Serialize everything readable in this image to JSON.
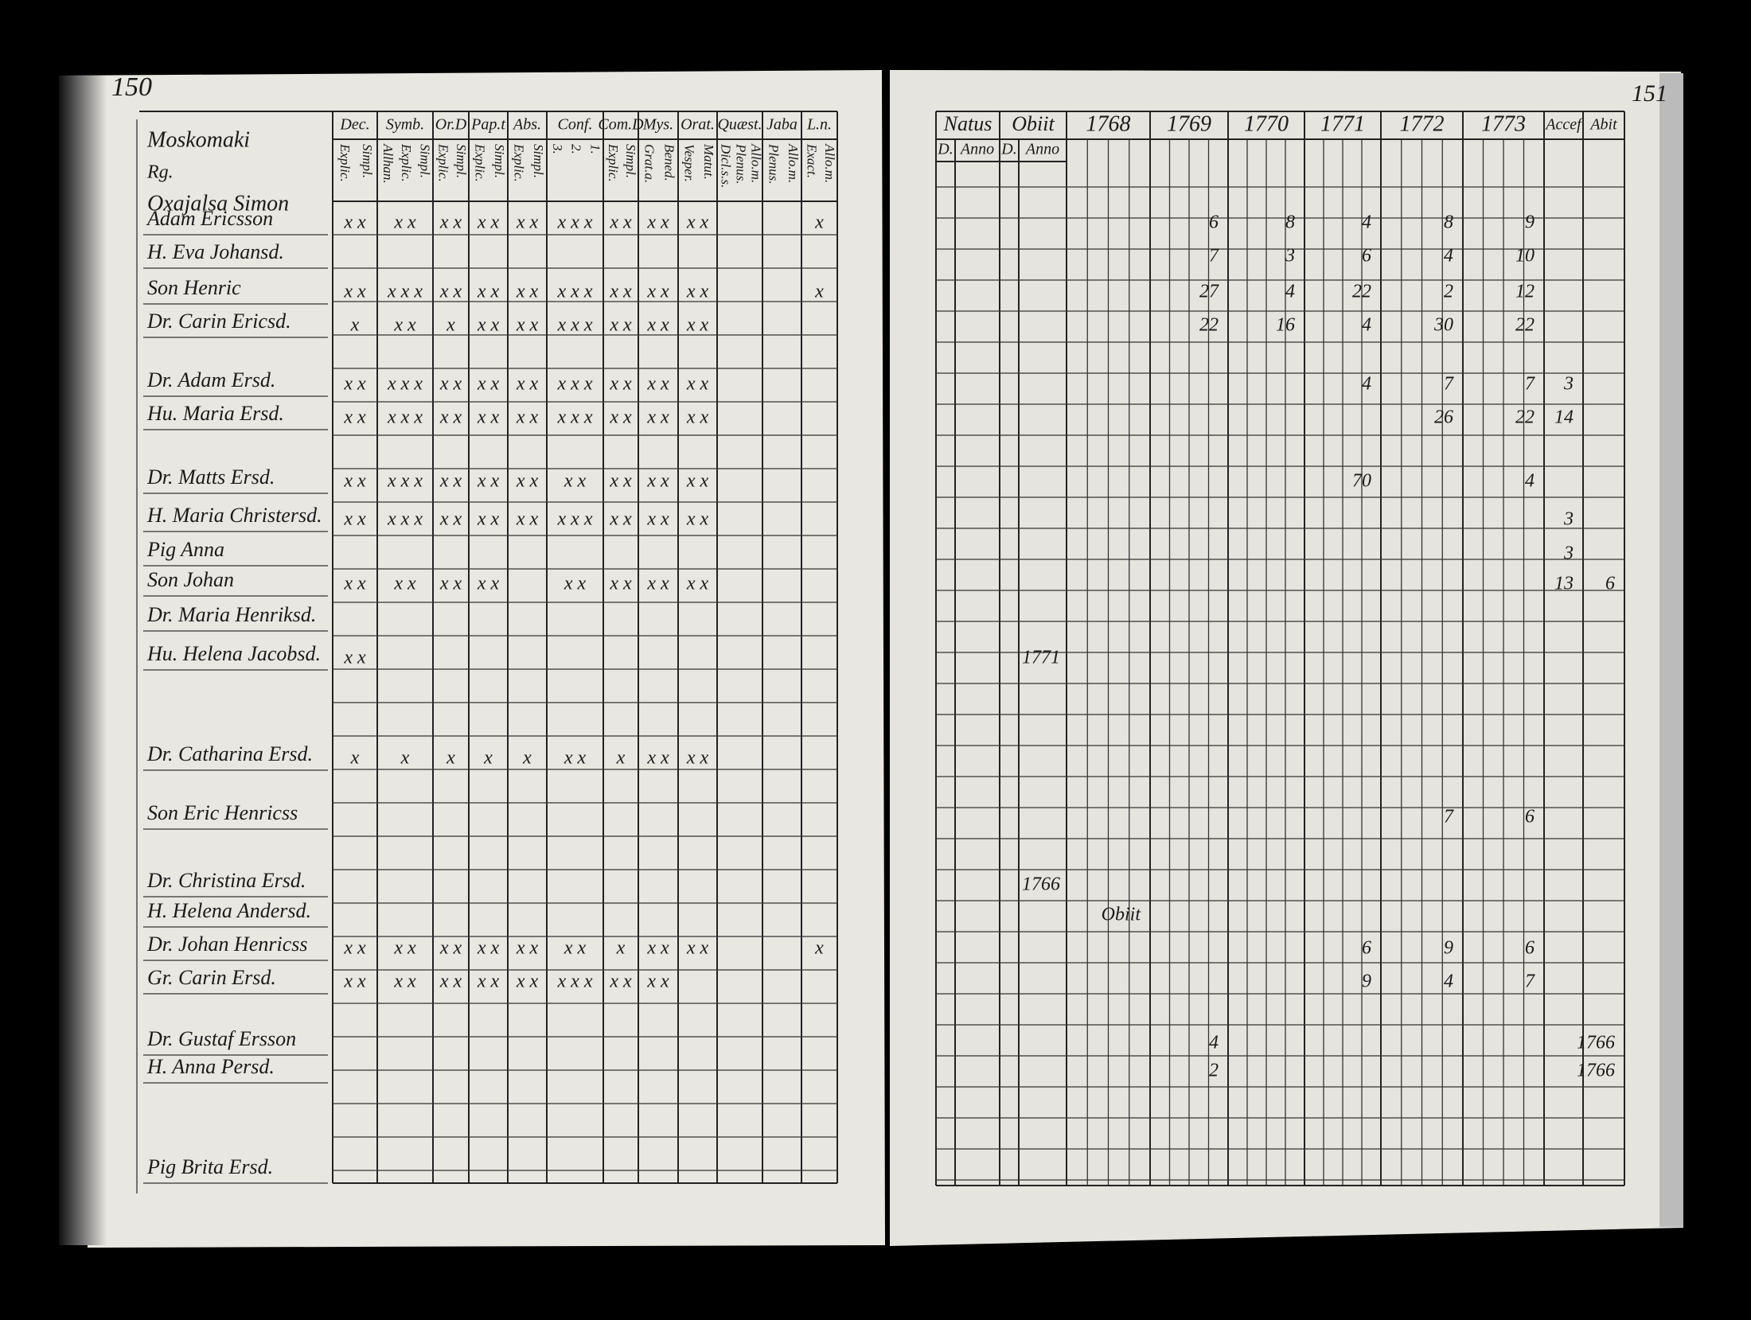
{
  "left_page": {
    "page_number": "150",
    "name_header": [
      "Moskomaki",
      "Rg.",
      "Oxajalsa Simon"
    ],
    "columns": [
      {
        "label": "Dec.",
        "subs": [
          "Explic.",
          "Simpl."
        ]
      },
      {
        "label": "Symb.",
        "subs": [
          "Allhan.",
          "Explic.",
          "Simpl."
        ]
      },
      {
        "label": "Or.D",
        "subs": [
          "Explic.",
          "Simpl."
        ]
      },
      {
        "label": "Pap.t",
        "subs": [
          "Explic.",
          "Simpl."
        ]
      },
      {
        "label": "Abs.",
        "subs": [
          "Explic.",
          "Simpl."
        ]
      },
      {
        "label": "Conf.",
        "subs": [
          "3.",
          "2.",
          "1."
        ]
      },
      {
        "label": "Com.D",
        "subs": [
          "Explic.",
          "Simpl."
        ]
      },
      {
        "label": "Mys.",
        "subs": [
          "Grat.a.",
          "Bened."
        ]
      },
      {
        "label": "Orat.",
        "subs": [
          "Vesper.",
          "Matut."
        ]
      },
      {
        "label": "Quæst.",
        "subs": [
          "Dicl.s.s.",
          "Plenus.",
          "Allo.m."
        ]
      },
      {
        "label": "Jaba",
        "subs": [
          "Plenus.",
          "Allo.m."
        ]
      },
      {
        "label": "L.n.",
        "subs": [
          "Exact.",
          "Allo.m."
        ]
      }
    ],
    "rows": [
      {
        "name": "Adam Ericsson",
        "marks": [
          "x x",
          "x x",
          "x x",
          "x x",
          "x x",
          "x x x",
          "x x",
          "x x",
          "x x",
          null,
          null,
          "x"
        ]
      },
      {
        "name": "H. Eva Johansd."
      },
      {
        "name": "Son Henric",
        "marks": [
          "x x",
          "x x x",
          "x x",
          "x x",
          "x x",
          "x x x",
          "x x",
          "x x",
          "x x",
          null,
          null,
          "x"
        ]
      },
      {
        "name": "Dr. Carin Ericsd.",
        "marks": [
          "x",
          "x x",
          "x",
          "x x",
          "x x",
          "x x x",
          "x x",
          "x x",
          "x x"
        ]
      },
      {
        "name": "Dr. Adam Ersd.",
        "marks": [
          "x x",
          "x x x",
          "x x",
          "x x",
          "x x",
          "x x x",
          "x x",
          "x x",
          "x x"
        ]
      },
      {
        "name": "Hu. Maria Ersd.",
        "marks": [
          "x x",
          "x x x",
          "x x",
          "x x",
          "x x",
          "x x x",
          "x x",
          "x x",
          "x x"
        ]
      },
      {
        "name": "Dr. Matts Ersd.",
        "marks": [
          "x x",
          "x x x",
          "x x",
          "x x",
          "x x",
          "x x",
          "x x",
          "x x",
          "x x"
        ]
      },
      {
        "name": "H. Maria Christersd.",
        "marks": [
          "x x",
          "x x x",
          "x x",
          "x x",
          "x x",
          "x x x",
          "x x",
          "x x",
          "x x"
        ]
      },
      {
        "name": "Pig Anna"
      },
      {
        "name": "Son Johan",
        "marks": [
          "x x",
          "x x",
          "x x",
          "x x",
          null,
          "x x",
          "x x",
          "x x",
          "x x"
        ]
      },
      {
        "name": "Dr. Maria Henriksd."
      },
      {
        "name": "Hu. Helena Jacobsd.",
        "marks": [
          "x x"
        ]
      },
      {
        "name": "Dr. Catharina Ersd.",
        "marks": [
          "x",
          "x",
          "x",
          "x",
          "x",
          "x x",
          "x",
          "x x",
          "x x"
        ]
      },
      {
        "name": "Son Eric Henricss"
      },
      {
        "name": "Dr. Christina Ersd."
      },
      {
        "name": "H. Helena Andersd."
      },
      {
        "name": "Dr. Johan Henricss",
        "marks": [
          "x x",
          "x x",
          "x x",
          "x x",
          "x x",
          "x x",
          "x",
          "x x",
          "x x",
          null,
          null,
          "x"
        ]
      },
      {
        "name": "Gr. Carin Ersd.",
        "marks": [
          "x x",
          "x x",
          "x x",
          "x x",
          "x x",
          "x x x",
          "x x",
          "x x"
        ]
      },
      {
        "name": "Dr. Gustaf Ersson"
      },
      {
        "name": "H. Anna Persd."
      },
      {
        "name": "Pig Brita Ersd."
      }
    ]
  },
  "right_page": {
    "page_number": "151",
    "columns": [
      {
        "label": "Natus",
        "subs": [
          "D.",
          "Anno"
        ]
      },
      {
        "label": "Obiit",
        "subs": [
          "D.",
          "Anno"
        ]
      },
      {
        "label": "1768"
      },
      {
        "label": "1769"
      },
      {
        "label": "1770"
      },
      {
        "label": "1771"
      },
      {
        "label": "1772"
      },
      {
        "label": "1773"
      },
      {
        "label": "Accef"
      },
      {
        "label": "Abit"
      }
    ],
    "rows": [
      [
        {
          "col": 3,
          "text": "6"
        },
        {
          "col": 4,
          "text": "8"
        },
        {
          "col": 5,
          "text": "4"
        },
        {
          "col": 6,
          "text": "8"
        },
        {
          "col": 7,
          "text": "9"
        }
      ],
      [
        {
          "col": 3,
          "text": "7"
        },
        {
          "col": 4,
          "text": "3"
        },
        {
          "col": 5,
          "text": "6"
        },
        {
          "col": 6,
          "text": "4"
        },
        {
          "col": 7,
          "text": "10"
        }
      ],
      [
        {
          "col": 3,
          "text": "27"
        },
        {
          "col": 4,
          "text": "4"
        },
        {
          "col": 5,
          "text": "22"
        },
        {
          "col": 6,
          "text": "2"
        },
        {
          "col": 7,
          "text": "12"
        }
      ],
      [
        {
          "col": 3,
          "text": "22"
        },
        {
          "col": 4,
          "text": "16"
        },
        {
          "col": 5,
          "text": "4"
        },
        {
          "col": 6,
          "text": "30"
        },
        {
          "col": 7,
          "text": "22"
        }
      ],
      [
        {
          "col": 5,
          "text": "4"
        },
        {
          "col": 6,
          "text": "7"
        },
        {
          "col": 7,
          "text": "7"
        },
        {
          "col": 8,
          "text": "3"
        }
      ],
      [
        {
          "col": 6,
          "text": "26"
        },
        {
          "col": 7,
          "text": "22"
        },
        {
          "col": 8,
          "text": "14"
        }
      ],
      [
        {
          "col": 5,
          "text": "70"
        },
        {
          "col": 7,
          "text": "4"
        }
      ],
      [
        {
          "col": 8,
          "text": "3"
        }
      ],
      [
        {
          "col": 8,
          "text": "3"
        }
      ],
      [
        {
          "col": 8,
          "text": "13"
        },
        {
          "col": 9,
          "text": "6"
        }
      ],
      [],
      [
        {
          "col": 1,
          "text": "1771"
        }
      ],
      [],
      [
        {
          "col": 6,
          "text": "7"
        },
        {
          "col": 7,
          "text": "6"
        }
      ],
      [
        {
          "col": 1,
          "text": "1766"
        }
      ],
      [
        {
          "col": 2,
          "text": "Obiit"
        }
      ],
      [
        {
          "col": 5,
          "text": "6"
        },
        {
          "col": 6,
          "text": "9"
        },
        {
          "col": 7,
          "text": "6"
        }
      ],
      [
        {
          "col": 5,
          "text": "9"
        },
        {
          "col": 6,
          "text": "4"
        },
        {
          "col": 7,
          "text": "7"
        }
      ],
      [
        {
          "col": 3,
          "text": "4"
        },
        {
          "col": 9,
          "text": "1766"
        }
      ],
      [
        {
          "col": 3,
          "text": "2"
        },
        {
          "col": 9,
          "text": "1766"
        }
      ],
      []
    ]
  }
}
